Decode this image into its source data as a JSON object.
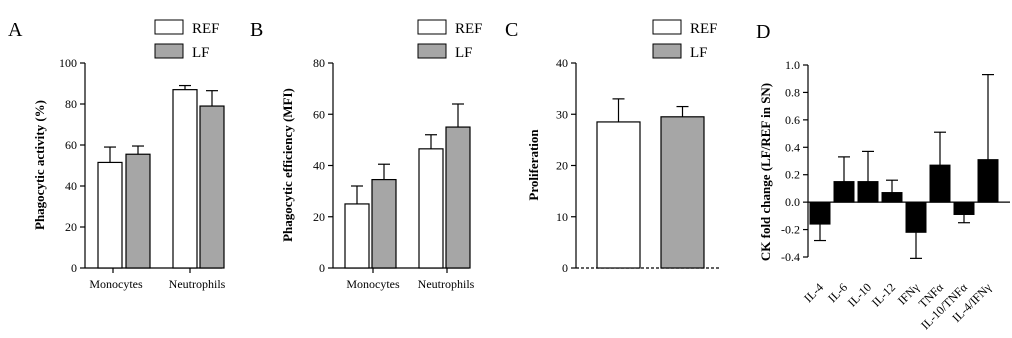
{
  "colors": {
    "ref": "#ffffff",
    "lf": "#a6a6a6",
    "ck": "#000000",
    "stroke": "#000000"
  },
  "legend": {
    "ref": "REF",
    "lf": "LF"
  },
  "chart_data": [
    {
      "panel": "A",
      "type": "bar",
      "ylabel": "Phagocytic activity (%)",
      "ylim": [
        0,
        100
      ],
      "yticks": [
        0,
        20,
        40,
        60,
        80,
        100
      ],
      "categories": [
        "Monocytes",
        "Neutrophils"
      ],
      "series": [
        {
          "name": "REF",
          "values": [
            51.5,
            87.0
          ],
          "errors": [
            7.5,
            2.0
          ]
        },
        {
          "name": "LF",
          "values": [
            55.5,
            79.0
          ],
          "errors": [
            4.0,
            7.5
          ]
        }
      ]
    },
    {
      "panel": "B",
      "type": "bar",
      "ylabel": "Phagocytic efficiency (MFI)",
      "ylim": [
        0,
        80
      ],
      "yticks": [
        0,
        20,
        40,
        60,
        80
      ],
      "categories": [
        "Monocytes",
        "Neutrophils"
      ],
      "series": [
        {
          "name": "REF",
          "values": [
            25.0,
            46.5
          ],
          "errors": [
            7.0,
            5.5
          ]
        },
        {
          "name": "LF",
          "values": [
            34.5,
            55.0
          ],
          "errors": [
            6.0,
            9.0
          ]
        }
      ]
    },
    {
      "panel": "C",
      "type": "bar",
      "ylabel": "Proliferation",
      "ylim": [
        0,
        40
      ],
      "yticks": [
        0,
        10,
        20,
        30,
        40
      ],
      "categories": [
        ""
      ],
      "series": [
        {
          "name": "REF",
          "values": [
            28.5
          ],
          "errors": [
            4.5
          ]
        },
        {
          "name": "LF",
          "values": [
            29.5
          ],
          "errors": [
            2.0
          ]
        }
      ]
    },
    {
      "panel": "D",
      "type": "bar",
      "ylabel": "CK fold change (LF/REF in SN)",
      "ylim": [
        -0.4,
        1.0
      ],
      "yticks": [
        "-0.4",
        "-0.2",
        "0.0",
        "0.2",
        "0.4",
        "0.6",
        "0.8",
        "1.0"
      ],
      "categories": [
        "IL-4",
        "IL-6",
        "IL-10",
        "IL-12",
        "IFNγ",
        "TNFα",
        "IL-10/TNFα",
        "IL-4/IFNγ"
      ],
      "values": [
        -0.16,
        0.15,
        0.15,
        0.07,
        -0.22,
        0.27,
        -0.09,
        0.31
      ],
      "errors": [
        0.12,
        0.18,
        0.22,
        0.09,
        0.19,
        0.24,
        0.06,
        0.62
      ]
    }
  ]
}
